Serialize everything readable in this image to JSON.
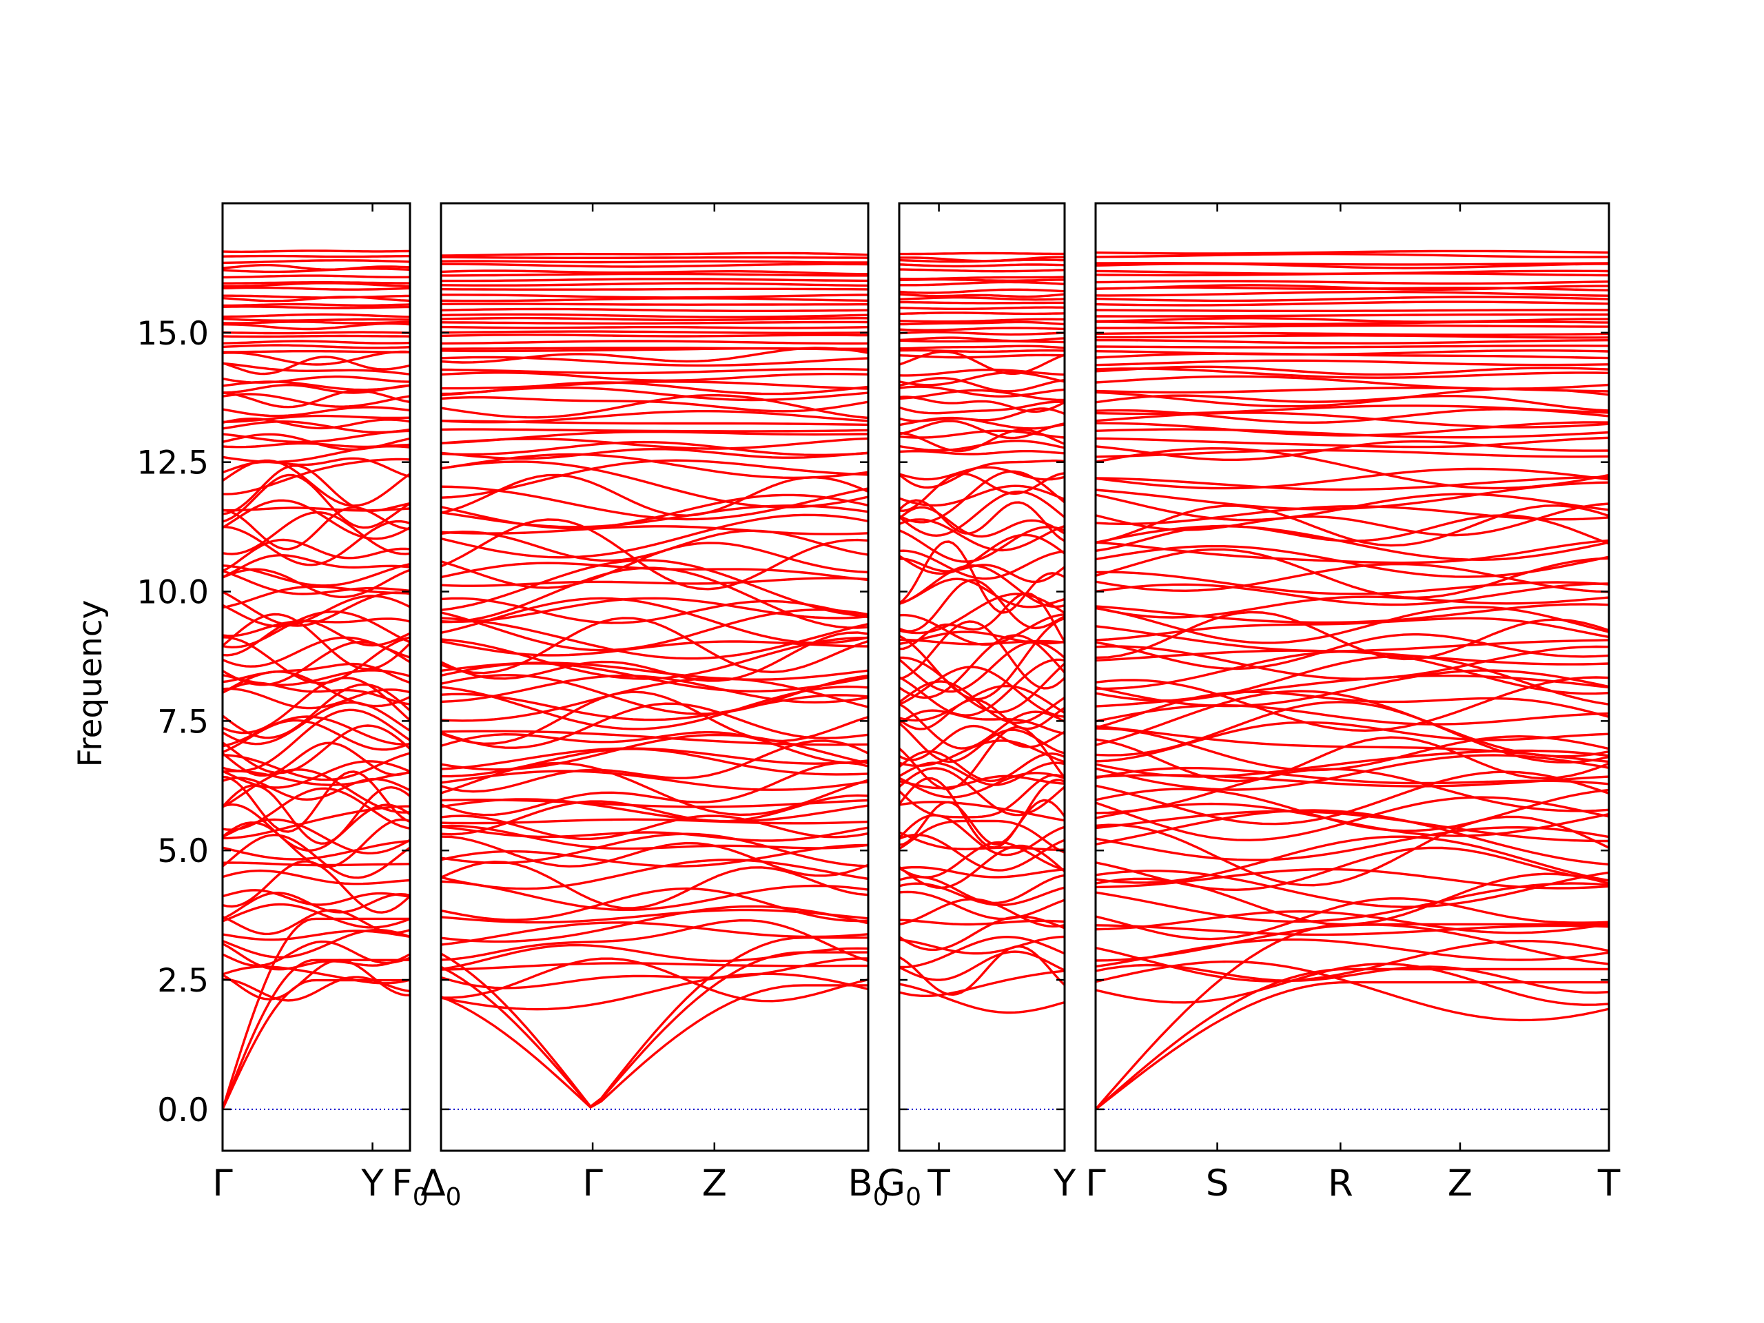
{
  "chart_data": {
    "type": "line",
    "title": "",
    "ylabel": "Frequency",
    "xlabel": "",
    "ylim": [
      -0.8,
      17.5
    ],
    "yticks": [
      "0.0",
      "2.5",
      "5.0",
      "7.5",
      "10.0",
      "12.5",
      "15.0"
    ],
    "ytick_values": [
      0,
      2.5,
      5,
      7.5,
      10,
      12.5,
      15
    ],
    "grid": false,
    "legend": "none",
    "colors": {
      "bands": "#ff0000",
      "zero_line": "#0000cc",
      "axes": "#000000"
    },
    "panels": [
      {
        "name": "segment-1",
        "points": [
          {
            "label": "Γ",
            "x": 0.0
          },
          {
            "label": "Y",
            "x": 0.8
          },
          {
            "label": "F",
            "sub": "0",
            "x": 1.0
          }
        ],
        "acoustic_at_zero": [
          0
        ],
        "top_flat_min": 12.6,
        "top_flat_max": 16.6
      },
      {
        "name": "segment-2",
        "points": [
          {
            "label": "Δ",
            "sub": "0",
            "x": 0.0
          },
          {
            "label": "Γ",
            "x": 0.355
          },
          {
            "label": "Z",
            "x": 0.64
          },
          {
            "label": "B",
            "sub": "0",
            "x": 1.0
          }
        ],
        "acoustic_at_zero": [
          0.355
        ],
        "top_flat_min": 12.6,
        "top_flat_max": 16.6
      },
      {
        "name": "segment-3",
        "points": [
          {
            "label": "G",
            "sub": "0",
            "x": 0.0
          },
          {
            "label": "T",
            "x": 0.24
          },
          {
            "label": "Y",
            "x": 1.0
          }
        ],
        "acoustic_at_zero": [],
        "top_flat_min": 12.6,
        "top_flat_max": 16.6
      },
      {
        "name": "segment-4",
        "points": [
          {
            "label": "Γ",
            "x": 0.0
          },
          {
            "label": "S",
            "x": 0.237
          },
          {
            "label": "R",
            "x": 0.477
          },
          {
            "label": "Z",
            "x": 0.71
          },
          {
            "label": "T",
            "x": 1.0
          }
        ],
        "acoustic_at_zero": [
          0
        ],
        "top_flat_min": 12.6,
        "top_flat_max": 16.6
      }
    ],
    "band_summary": {
      "acoustic_max": 3.8,
      "low_optical_range": [
        2.1,
        4.8
      ],
      "mid_range": [
        4.8,
        9.5
      ],
      "upper_range": [
        9.5,
        12.5
      ],
      "flat_top_range": [
        12.6,
        16.6
      ]
    }
  }
}
